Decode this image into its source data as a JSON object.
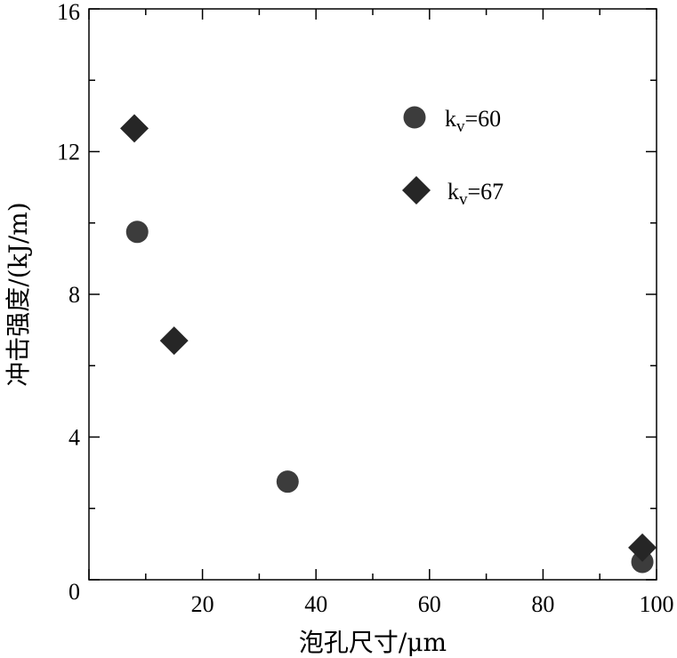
{
  "chart_data": {
    "type": "scatter",
    "xlabel": "泡孔尺寸/μm",
    "ylabel": "冲击强度/(kJ/m)",
    "xlim": [
      0,
      100
    ],
    "ylim": [
      0,
      16
    ],
    "x_ticks": [
      0,
      20,
      40,
      60,
      80,
      100
    ],
    "y_ticks": [
      0,
      4,
      8,
      12,
      16
    ],
    "x_tick_labels": [
      "",
      "20",
      "40",
      "60",
      "80",
      "100"
    ],
    "y_tick_labels": [
      "0",
      "4",
      "8",
      "12",
      "16"
    ],
    "x_minor_step": 10,
    "y_minor_step": 2,
    "grid": false,
    "legend_position": "top-right",
    "series": [
      {
        "legend_base": "k",
        "legend_sub": "v",
        "legend_rest": "=60",
        "marker": "circle",
        "color": "#3c3c3c",
        "points": [
          [
            8.5,
            9.75
          ],
          [
            35,
            2.75
          ],
          [
            97.5,
            0.5
          ]
        ]
      },
      {
        "legend_base": "k",
        "legend_sub": "v",
        "legend_rest": "=67",
        "marker": "diamond",
        "color": "#262626",
        "points": [
          [
            8,
            12.65
          ],
          [
            15,
            6.7
          ],
          [
            97.5,
            0.9
          ]
        ]
      }
    ]
  }
}
